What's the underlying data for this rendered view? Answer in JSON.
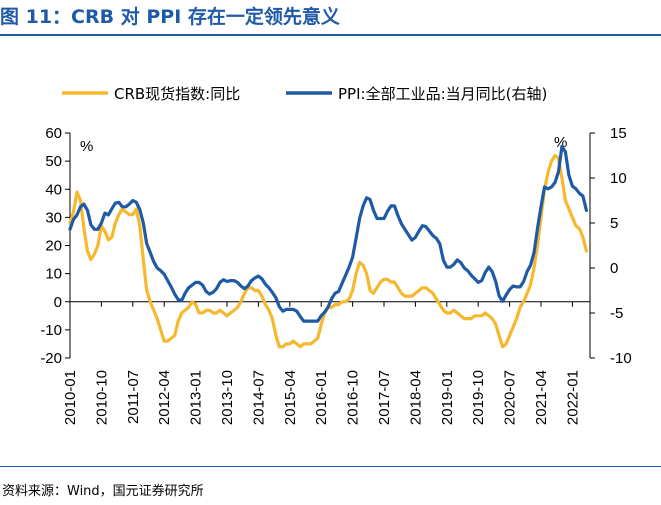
{
  "header": {
    "title": "图 11：CRB 对 PPI 存在一定领先意义"
  },
  "footer": {
    "source": "资料来源：Wind，国元证券研究所"
  },
  "chart_data": {
    "type": "line",
    "left_axis": {
      "ticks": [
        60,
        50,
        40,
        30,
        20,
        10,
        0,
        -10,
        -20
      ],
      "range": [
        -20,
        60
      ],
      "unit": "%"
    },
    "right_axis": {
      "ticks": [
        15,
        10,
        5,
        0,
        -5,
        -10
      ],
      "range": [
        -10,
        15
      ],
      "unit": "%"
    },
    "x_tick_labels": [
      "2010-01",
      "2010-10",
      "2011-07",
      "2012-04",
      "2013-01",
      "2013-10",
      "2014-07",
      "2015-04",
      "2016-01",
      "2016-10",
      "2017-07",
      "2018-04",
      "2019-01",
      "2019-10",
      "2020-07",
      "2021-04",
      "2022-01"
    ],
    "legend_position": "top",
    "grid": false,
    "series": [
      {
        "name": "CRB现货指数:同比",
        "axis": "left",
        "color": "#f5b82e",
        "points": [
          [
            2010.0,
            28
          ],
          [
            2010.083,
            32
          ],
          [
            2010.167,
            39
          ],
          [
            2010.25,
            36
          ],
          [
            2010.333,
            26
          ],
          [
            2010.417,
            18
          ],
          [
            2010.5,
            15
          ],
          [
            2010.583,
            17
          ],
          [
            2010.667,
            20
          ],
          [
            2010.75,
            27
          ],
          [
            2010.833,
            25
          ],
          [
            2010.917,
            22
          ],
          [
            2011.0,
            23
          ],
          [
            2011.083,
            28
          ],
          [
            2011.167,
            31
          ],
          [
            2011.25,
            33
          ],
          [
            2011.333,
            32
          ],
          [
            2011.417,
            31
          ],
          [
            2011.5,
            31
          ],
          [
            2011.583,
            33
          ],
          [
            2011.667,
            27
          ],
          [
            2011.75,
            15
          ],
          [
            2011.833,
            4
          ],
          [
            2011.917,
            0
          ],
          [
            2012.0,
            -3
          ],
          [
            2012.083,
            -6
          ],
          [
            2012.167,
            -10
          ],
          [
            2012.25,
            -14
          ],
          [
            2012.333,
            -14
          ],
          [
            2012.417,
            -13
          ],
          [
            2012.5,
            -12
          ],
          [
            2012.583,
            -7
          ],
          [
            2012.667,
            -4
          ],
          [
            2012.75,
            -3
          ],
          [
            2012.833,
            -2
          ],
          [
            2012.917,
            0
          ],
          [
            2013.0,
            -1
          ],
          [
            2013.083,
            -4
          ],
          [
            2013.167,
            -4
          ],
          [
            2013.25,
            -3
          ],
          [
            2013.333,
            -3
          ],
          [
            2013.417,
            -4
          ],
          [
            2013.5,
            -4
          ],
          [
            2013.583,
            -3
          ],
          [
            2013.667,
            -4
          ],
          [
            2013.75,
            -5
          ],
          [
            2013.833,
            -4
          ],
          [
            2013.917,
            -3
          ],
          [
            2014.0,
            -2
          ],
          [
            2014.083,
            0
          ],
          [
            2014.167,
            3
          ],
          [
            2014.25,
            5
          ],
          [
            2014.333,
            5
          ],
          [
            2014.417,
            4
          ],
          [
            2014.5,
            4
          ],
          [
            2014.583,
            2
          ],
          [
            2014.667,
            -1
          ],
          [
            2014.75,
            -3
          ],
          [
            2014.833,
            -6
          ],
          [
            2014.917,
            -12
          ],
          [
            2015.0,
            -16
          ],
          [
            2015.083,
            -16
          ],
          [
            2015.167,
            -15
          ],
          [
            2015.25,
            -15
          ],
          [
            2015.333,
            -14
          ],
          [
            2015.417,
            -15
          ],
          [
            2015.5,
            -16
          ],
          [
            2015.583,
            -15
          ],
          [
            2015.667,
            -15
          ],
          [
            2015.75,
            -15
          ],
          [
            2015.833,
            -14
          ],
          [
            2015.917,
            -13
          ],
          [
            2016.0,
            -8
          ],
          [
            2016.083,
            -4
          ],
          [
            2016.167,
            -2
          ],
          [
            2016.25,
            -2
          ],
          [
            2016.333,
            -1
          ],
          [
            2016.417,
            -1
          ],
          [
            2016.5,
            0
          ],
          [
            2016.583,
            0
          ],
          [
            2016.667,
            1
          ],
          [
            2016.75,
            4
          ],
          [
            2016.833,
            10
          ],
          [
            2016.917,
            14
          ],
          [
            2017.0,
            13
          ],
          [
            2017.083,
            10
          ],
          [
            2017.167,
            4
          ],
          [
            2017.25,
            3
          ],
          [
            2017.333,
            5
          ],
          [
            2017.417,
            7
          ],
          [
            2017.5,
            8
          ],
          [
            2017.583,
            8
          ],
          [
            2017.667,
            7
          ],
          [
            2017.75,
            7
          ],
          [
            2017.833,
            5
          ],
          [
            2017.917,
            3
          ],
          [
            2018.0,
            2
          ],
          [
            2018.083,
            2
          ],
          [
            2018.167,
            2
          ],
          [
            2018.25,
            3
          ],
          [
            2018.333,
            4
          ],
          [
            2018.417,
            5
          ],
          [
            2018.5,
            5
          ],
          [
            2018.583,
            4
          ],
          [
            2018.667,
            3
          ],
          [
            2018.75,
            1
          ],
          [
            2018.833,
            -1
          ],
          [
            2018.917,
            -3
          ],
          [
            2019.0,
            -4
          ],
          [
            2019.083,
            -4
          ],
          [
            2019.167,
            -3
          ],
          [
            2019.25,
            -4
          ],
          [
            2019.333,
            -5
          ],
          [
            2019.417,
            -6
          ],
          [
            2019.5,
            -6
          ],
          [
            2019.583,
            -6
          ],
          [
            2019.667,
            -5
          ],
          [
            2019.75,
            -5
          ],
          [
            2019.833,
            -5
          ],
          [
            2019.917,
            -4
          ],
          [
            2020.0,
            -5
          ],
          [
            2020.083,
            -6
          ],
          [
            2020.167,
            -8
          ],
          [
            2020.25,
            -12
          ],
          [
            2020.333,
            -16
          ],
          [
            2020.417,
            -15
          ],
          [
            2020.5,
            -12
          ],
          [
            2020.583,
            -9
          ],
          [
            2020.667,
            -6
          ],
          [
            2020.75,
            -2
          ],
          [
            2020.833,
            0
          ],
          [
            2020.917,
            3
          ],
          [
            2021.0,
            6
          ],
          [
            2021.083,
            12
          ],
          [
            2021.167,
            20
          ],
          [
            2021.25,
            30
          ],
          [
            2021.333,
            40
          ],
          [
            2021.417,
            46
          ],
          [
            2021.5,
            50
          ],
          [
            2021.583,
            52
          ],
          [
            2021.667,
            51
          ],
          [
            2021.75,
            44
          ],
          [
            2021.833,
            36
          ],
          [
            2021.917,
            33
          ],
          [
            2022.0,
            30
          ],
          [
            2022.083,
            27
          ],
          [
            2022.167,
            26
          ],
          [
            2022.25,
            23
          ],
          [
            2022.333,
            18
          ]
        ]
      },
      {
        "name": "PPI:全部工业品:当月同比(右轴)",
        "axis": "right",
        "color": "#1f5aa6",
        "points": [
          [
            2010.0,
            4.3
          ],
          [
            2010.083,
            5.4
          ],
          [
            2010.167,
            5.9
          ],
          [
            2010.25,
            6.8
          ],
          [
            2010.333,
            7.1
          ],
          [
            2010.417,
            6.4
          ],
          [
            2010.5,
            4.8
          ],
          [
            2010.583,
            4.3
          ],
          [
            2010.667,
            4.3
          ],
          [
            2010.75,
            5.0
          ],
          [
            2010.833,
            6.1
          ],
          [
            2010.917,
            5.9
          ],
          [
            2011.0,
            6.6
          ],
          [
            2011.083,
            7.2
          ],
          [
            2011.167,
            7.3
          ],
          [
            2011.25,
            6.8
          ],
          [
            2011.333,
            6.8
          ],
          [
            2011.417,
            7.1
          ],
          [
            2011.5,
            7.5
          ],
          [
            2011.583,
            7.3
          ],
          [
            2011.667,
            6.5
          ],
          [
            2011.75,
            5.0
          ],
          [
            2011.833,
            2.7
          ],
          [
            2011.917,
            1.7
          ],
          [
            2012.0,
            0.7
          ],
          [
            2012.083,
            0.0
          ],
          [
            2012.167,
            -0.3
          ],
          [
            2012.25,
            -0.7
          ],
          [
            2012.333,
            -1.4
          ],
          [
            2012.417,
            -2.1
          ],
          [
            2012.5,
            -2.9
          ],
          [
            2012.583,
            -3.5
          ],
          [
            2012.667,
            -3.6
          ],
          [
            2012.75,
            -2.8
          ],
          [
            2012.833,
            -2.2
          ],
          [
            2012.917,
            -1.9
          ],
          [
            2013.0,
            -1.6
          ],
          [
            2013.083,
            -1.6
          ],
          [
            2013.167,
            -1.9
          ],
          [
            2013.25,
            -2.6
          ],
          [
            2013.333,
            -2.9
          ],
          [
            2013.417,
            -2.7
          ],
          [
            2013.5,
            -2.3
          ],
          [
            2013.583,
            -1.6
          ],
          [
            2013.667,
            -1.3
          ],
          [
            2013.75,
            -1.5
          ],
          [
            2013.833,
            -1.4
          ],
          [
            2013.917,
            -1.4
          ],
          [
            2014.0,
            -1.6
          ],
          [
            2014.083,
            -2.0
          ],
          [
            2014.167,
            -2.3
          ],
          [
            2014.25,
            -2.0
          ],
          [
            2014.333,
            -1.4
          ],
          [
            2014.417,
            -1.1
          ],
          [
            2014.5,
            -0.9
          ],
          [
            2014.583,
            -1.2
          ],
          [
            2014.667,
            -1.8
          ],
          [
            2014.75,
            -2.2
          ],
          [
            2014.833,
            -2.7
          ],
          [
            2014.917,
            -3.3
          ],
          [
            2015.0,
            -4.3
          ],
          [
            2015.083,
            -4.8
          ],
          [
            2015.167,
            -4.6
          ],
          [
            2015.25,
            -4.6
          ],
          [
            2015.333,
            -4.6
          ],
          [
            2015.417,
            -4.8
          ],
          [
            2015.5,
            -5.4
          ],
          [
            2015.583,
            -5.9
          ],
          [
            2015.667,
            -5.9
          ],
          [
            2015.75,
            -5.9
          ],
          [
            2015.833,
            -5.9
          ],
          [
            2015.917,
            -5.9
          ],
          [
            2016.0,
            -5.3
          ],
          [
            2016.083,
            -4.9
          ],
          [
            2016.167,
            -4.3
          ],
          [
            2016.25,
            -3.4
          ],
          [
            2016.333,
            -2.8
          ],
          [
            2016.417,
            -2.6
          ],
          [
            2016.5,
            -1.7
          ],
          [
            2016.583,
            -0.8
          ],
          [
            2016.667,
            0.1
          ],
          [
            2016.75,
            1.2
          ],
          [
            2016.833,
            3.3
          ],
          [
            2016.917,
            5.5
          ],
          [
            2017.0,
            6.9
          ],
          [
            2017.083,
            7.8
          ],
          [
            2017.167,
            7.6
          ],
          [
            2017.25,
            6.4
          ],
          [
            2017.333,
            5.5
          ],
          [
            2017.417,
            5.5
          ],
          [
            2017.5,
            5.5
          ],
          [
            2017.583,
            6.3
          ],
          [
            2017.667,
            6.9
          ],
          [
            2017.75,
            6.9
          ],
          [
            2017.833,
            5.8
          ],
          [
            2017.917,
            4.9
          ],
          [
            2018.0,
            4.3
          ],
          [
            2018.083,
            3.7
          ],
          [
            2018.167,
            3.1
          ],
          [
            2018.25,
            3.4
          ],
          [
            2018.333,
            4.1
          ],
          [
            2018.417,
            4.7
          ],
          [
            2018.5,
            4.6
          ],
          [
            2018.583,
            4.1
          ],
          [
            2018.667,
            3.6
          ],
          [
            2018.75,
            3.3
          ],
          [
            2018.833,
            2.7
          ],
          [
            2018.917,
            0.9
          ],
          [
            2019.0,
            0.1
          ],
          [
            2019.083,
            0.1
          ],
          [
            2019.167,
            0.4
          ],
          [
            2019.25,
            0.9
          ],
          [
            2019.333,
            0.6
          ],
          [
            2019.417,
            0.0
          ],
          [
            2019.5,
            -0.3
          ],
          [
            2019.583,
            -0.8
          ],
          [
            2019.667,
            -1.2
          ],
          [
            2019.75,
            -1.6
          ],
          [
            2019.833,
            -1.4
          ],
          [
            2019.917,
            -0.5
          ],
          [
            2020.0,
            0.1
          ],
          [
            2020.083,
            -0.4
          ],
          [
            2020.167,
            -1.5
          ],
          [
            2020.25,
            -3.1
          ],
          [
            2020.333,
            -3.7
          ],
          [
            2020.417,
            -3.0
          ],
          [
            2020.5,
            -2.4
          ],
          [
            2020.583,
            -2.0
          ],
          [
            2020.667,
            -2.1
          ],
          [
            2020.75,
            -2.1
          ],
          [
            2020.833,
            -1.5
          ],
          [
            2020.917,
            -0.4
          ],
          [
            2021.0,
            0.3
          ],
          [
            2021.083,
            1.7
          ],
          [
            2021.167,
            4.4
          ],
          [
            2021.25,
            6.8
          ],
          [
            2021.333,
            9.0
          ],
          [
            2021.417,
            8.8
          ],
          [
            2021.5,
            9.0
          ],
          [
            2021.583,
            9.5
          ],
          [
            2021.667,
            10.7
          ],
          [
            2021.75,
            13.5
          ],
          [
            2021.833,
            12.9
          ],
          [
            2021.917,
            10.3
          ],
          [
            2022.0,
            9.1
          ],
          [
            2022.083,
            8.8
          ],
          [
            2022.167,
            8.3
          ],
          [
            2022.25,
            8.0
          ],
          [
            2022.333,
            6.4
          ]
        ]
      }
    ]
  }
}
